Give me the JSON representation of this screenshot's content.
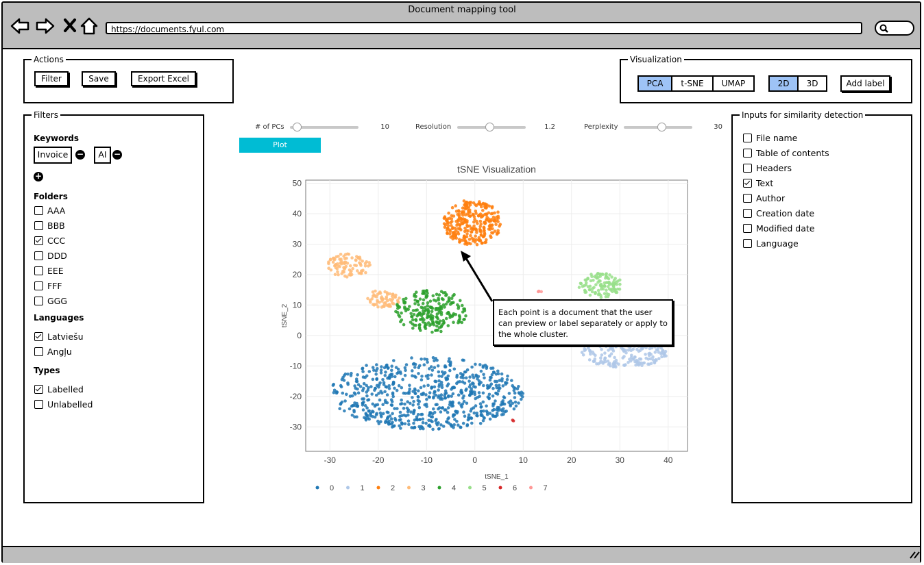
{
  "window": {
    "title": "Document mapping tool",
    "url": "https://documents.fyul.com"
  },
  "actions": {
    "label": "Actions",
    "buttons": [
      "Filter",
      "Save",
      "Export Excel"
    ]
  },
  "visualization": {
    "label": "Visualization",
    "methods": [
      "PCA",
      "t-SNE",
      "UMAP"
    ],
    "selected_method": "PCA",
    "dims": [
      "2D",
      "3D"
    ],
    "selected_dim": "2D",
    "add_label": "Add label"
  },
  "filters": {
    "label": "Filters",
    "keywords_title": "Keywords",
    "keywords": [
      "Invoice",
      "AI"
    ],
    "folders_title": "Folders",
    "folders": [
      {
        "name": "AAA",
        "checked": false
      },
      {
        "name": "BBB",
        "checked": false
      },
      {
        "name": "CCC",
        "checked": true
      },
      {
        "name": "DDD",
        "checked": false
      },
      {
        "name": "EEE",
        "checked": false
      },
      {
        "name": "FFF",
        "checked": false
      },
      {
        "name": "GGG",
        "checked": false
      }
    ],
    "languages_title": "Languages",
    "languages": [
      {
        "name": "Latviešu",
        "checked": true
      },
      {
        "name": "Angļu",
        "checked": false
      }
    ],
    "types_title": "Types",
    "types": [
      {
        "name": "Labelled",
        "checked": true
      },
      {
        "name": "Unlabelled",
        "checked": false
      }
    ]
  },
  "controls": {
    "sliders": [
      {
        "label": "# of PCs",
        "value": "10",
        "fraction": 0.1
      },
      {
        "label": "Resolution",
        "value": "1.2",
        "fraction": 0.47
      },
      {
        "label": "Perplexity",
        "value": "30",
        "fraction": 0.55
      }
    ],
    "plot_button": "Plot"
  },
  "similarity": {
    "label": "Inputs for similarity detection",
    "items": [
      {
        "name": "File name",
        "checked": false
      },
      {
        "name": "Table of contents",
        "checked": false
      },
      {
        "name": "Headers",
        "checked": false
      },
      {
        "name": "Text",
        "checked": true
      },
      {
        "name": "Author",
        "checked": false
      },
      {
        "name": "Creation date",
        "checked": false
      },
      {
        "name": "Modified date",
        "checked": false
      },
      {
        "name": "Language",
        "checked": false
      }
    ]
  },
  "callout": "Each point is a document that the user can preview or label separately or apply to the whole cluster.",
  "chart_data": {
    "type": "scatter",
    "title": "tSNE Visualization",
    "xlabel": "tSNE_1",
    "ylabel": "tSNE_2",
    "xlim": [
      -35,
      44
    ],
    "ylim": [
      -38,
      51
    ],
    "xticks": [
      -30,
      -20,
      -10,
      0,
      10,
      20,
      30,
      40
    ],
    "yticks": [
      -30,
      -20,
      -10,
      0,
      10,
      20,
      30,
      40,
      50
    ],
    "grid": true,
    "legend_position": "bottom",
    "series": [
      {
        "name": "0",
        "color": "#1f77b4",
        "clusters": [
          {
            "cx": -10,
            "cy": -19,
            "rx": 20,
            "ry": 12,
            "n": 700
          }
        ]
      },
      {
        "name": "1",
        "color": "#aec7e8",
        "clusters": [
          {
            "cx": 31,
            "cy": -5.5,
            "rx": 9,
            "ry": 5,
            "n": 200
          }
        ]
      },
      {
        "name": "2",
        "color": "#ff7f0e",
        "clusters": [
          {
            "cx": -0.5,
            "cy": 37,
            "rx": 6,
            "ry": 7.5,
            "n": 280
          }
        ]
      },
      {
        "name": "3",
        "color": "#ffbb78",
        "clusters": [
          {
            "cx": -26,
            "cy": 23,
            "rx": 4.5,
            "ry": 4,
            "n": 90
          },
          {
            "cx": -19,
            "cy": 12,
            "rx": 3.5,
            "ry": 3,
            "n": 60
          }
        ]
      },
      {
        "name": "4",
        "color": "#2ca02c",
        "clusters": [
          {
            "cx": -9,
            "cy": 8,
            "rx": 7.5,
            "ry": 7,
            "n": 220
          }
        ]
      },
      {
        "name": "5",
        "color": "#98df8a",
        "clusters": [
          {
            "cx": 26,
            "cy": 16.5,
            "rx": 4.5,
            "ry": 4,
            "n": 110
          }
        ]
      },
      {
        "name": "6",
        "color": "#d62728",
        "clusters": [
          {
            "cx": 8,
            "cy": -28,
            "rx": 0.4,
            "ry": 0.4,
            "n": 2
          }
        ]
      },
      {
        "name": "7",
        "color": "#ff9896",
        "clusters": [
          {
            "cx": 13.5,
            "cy": 14.5,
            "rx": 0.6,
            "ry": 0.2,
            "n": 4
          }
        ]
      }
    ]
  }
}
